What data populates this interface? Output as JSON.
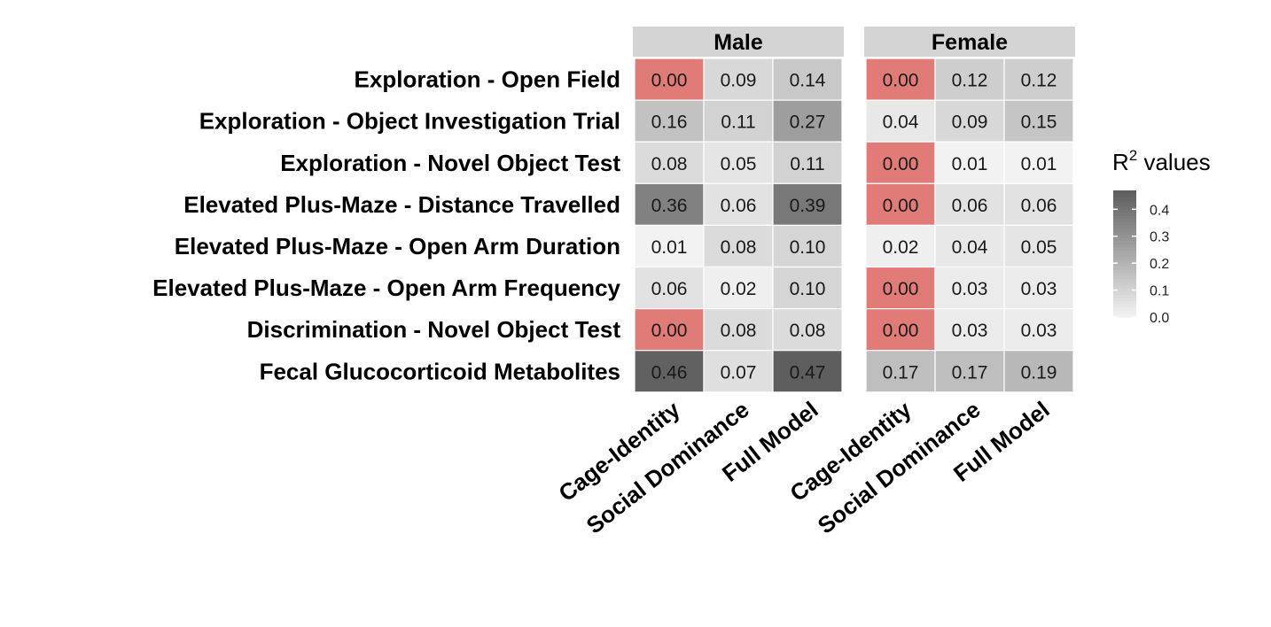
{
  "chart_data": {
    "type": "heatmap",
    "title": "",
    "rows": [
      "Exploration - Open Field",
      "Exploration - Object Investigation Trial",
      "Exploration - Novel Object Test",
      "Elevated Plus-Maze - Distance Travelled",
      "Elevated Plus-Maze - Open Arm Duration",
      "Elevated Plus-Maze - Open Arm Frequency",
      "Discrimination - Novel Object Test",
      "Fecal Glucocorticoid Metabolites"
    ],
    "columns": [
      "Cage-Identity",
      "Social Dominance",
      "Full Model"
    ],
    "facets": [
      {
        "name": "Male",
        "values": [
          [
            0.0,
            0.09,
            0.14
          ],
          [
            0.16,
            0.11,
            0.27
          ],
          [
            0.08,
            0.05,
            0.11
          ],
          [
            0.36,
            0.06,
            0.39
          ],
          [
            0.01,
            0.08,
            0.1
          ],
          [
            0.06,
            0.02,
            0.1
          ],
          [
            0.0,
            0.08,
            0.08
          ],
          [
            0.46,
            0.07,
            0.47
          ]
        ]
      },
      {
        "name": "Female",
        "values": [
          [
            0.0,
            0.12,
            0.12
          ],
          [
            0.04,
            0.09,
            0.15
          ],
          [
            0.0,
            0.01,
            0.01
          ],
          [
            0.0,
            0.06,
            0.06
          ],
          [
            0.02,
            0.04,
            0.05
          ],
          [
            0.0,
            0.03,
            0.03
          ],
          [
            0.0,
            0.03,
            0.03
          ],
          [
            0.17,
            0.17,
            0.19
          ]
        ]
      }
    ],
    "legend": {
      "title_main": "R",
      "title_sup": "2",
      "title_rest": " values",
      "ticks": [
        0.4,
        0.3,
        0.2,
        0.1,
        0.0
      ],
      "tick_labels": [
        "0.4",
        "0.3",
        "0.2",
        "0.1",
        "0.0"
      ],
      "range": [
        0.0,
        0.47
      ],
      "position": "right"
    },
    "colors": {
      "zero": "#e07b78",
      "low": "#f5f5f5",
      "high": "#5e5e5e",
      "facet_strip": "#d4d4d4"
    }
  }
}
